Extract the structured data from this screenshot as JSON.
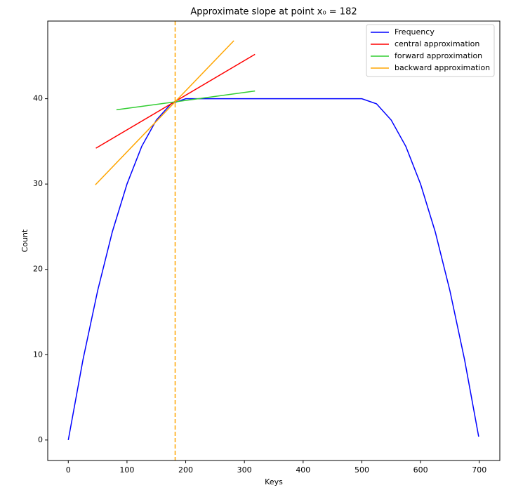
{
  "chart_data": {
    "type": "line",
    "title": "Approximate slope at point x₀ = 182",
    "x_label": "Keys",
    "y_label": "Count",
    "xlim": [
      -35,
      735
    ],
    "ylim": [
      -2.4,
      49.1
    ],
    "xticks": [
      0,
      100,
      200,
      300,
      400,
      500,
      600,
      700
    ],
    "yticks": [
      0,
      10,
      20,
      30,
      40
    ],
    "legend": "upper right",
    "vline": {
      "x": 182,
      "color": "#ffa500",
      "style": "dashed"
    },
    "series": [
      {
        "name": "Frequency",
        "color": "#0000ff",
        "x": [
          0,
          25,
          50,
          75,
          100,
          125,
          150,
          175,
          200,
          250,
          300,
          350,
          400,
          450,
          500,
          525,
          550,
          575,
          600,
          625,
          650,
          675,
          699
        ],
        "values": [
          0,
          9.4,
          17.5,
          24.4,
          30,
          34.4,
          37.5,
          39.4,
          40,
          40,
          40,
          40,
          40,
          40,
          40,
          39.4,
          37.5,
          34.4,
          30,
          24.4,
          17.5,
          9.4,
          0.4
        ]
      },
      {
        "name": "central approximation",
        "color": "#ff0000",
        "x": [
          47,
          318
        ],
        "values": [
          34.2,
          45.2
        ]
      },
      {
        "name": "forward approximation",
        "color": "#32cd32",
        "x": [
          82,
          318
        ],
        "values": [
          38.7,
          40.9
        ]
      },
      {
        "name": "backward approximation",
        "color": "#ffa500",
        "x": [
          46,
          282
        ],
        "values": [
          29.9,
          46.8
        ]
      }
    ]
  }
}
